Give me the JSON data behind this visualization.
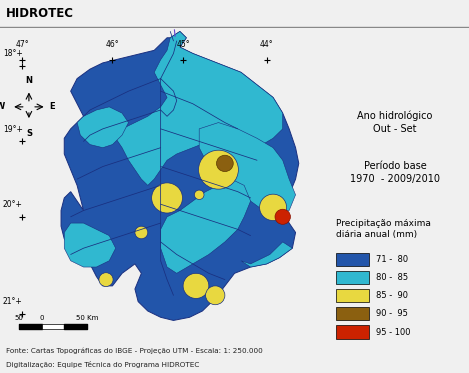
{
  "title": "HIDROTEC",
  "header_bg": "#b8dde8",
  "header_border": "#888888",
  "background_color": "#f0f0f0",
  "map_bg": "#ddeef5",
  "anno_hydro": "Ano hidrológico\nOut - Set",
  "anno_period": "Período base\n1970  - 2009/2010",
  "legend_title": "Precipitação máxima\ndiária anual (mm)",
  "legend_entries": [
    {
      "label": "71 -  80",
      "color": "#2255aa"
    },
    {
      "label": "80 -  85",
      "color": "#30b8d0"
    },
    {
      "label": "85 -  90",
      "color": "#e8d840"
    },
    {
      "label": "90 -  95",
      "color": "#8b6010"
    },
    {
      "label": "95 - 100",
      "color": "#cc2200"
    }
  ],
  "footer_line1": "Fonte: Cartas Topográficas do IBGE - Projeção UTM - Escala: 1: 250.000",
  "footer_line2": "Digitalização: Equipe Técnica do Programa HIDROTEC",
  "lon_labels": [
    "47°",
    "46°",
    "45°",
    "44°"
  ],
  "lat_labels": [
    "18°",
    "19°",
    "20°",
    "21°"
  ],
  "river_color": "#1a3080",
  "basin_edge_color": "#1a3080",
  "compass_color": "#222222"
}
